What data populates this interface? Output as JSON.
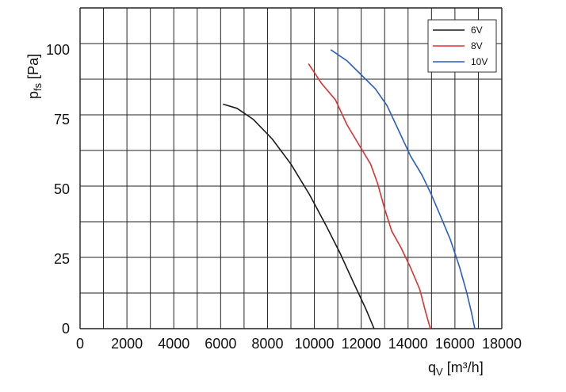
{
  "chart_data": {
    "type": "line",
    "xlabel_main": "q",
    "xlabel_sub": "V",
    "xlabel_unit": " [m³/h]",
    "ylabel_main": "p",
    "ylabel_sub": "fs",
    "ylabel_unit": " [Pa]",
    "xlim": [
      0,
      18000
    ],
    "ylim": [
      0,
      115
    ],
    "x_ticks": [
      0,
      2000,
      4000,
      6000,
      8000,
      10000,
      12000,
      14000,
      16000,
      18000
    ],
    "y_ticks": [
      0,
      25,
      50,
      75,
      100
    ],
    "grid": true,
    "legend": "top-right",
    "series": [
      {
        "name": "6V",
        "color": "#1a1a1a",
        "points": [
          [
            6100,
            80.5
          ],
          [
            6700,
            79
          ],
          [
            7400,
            75
          ],
          [
            8200,
            68
          ],
          [
            9000,
            59
          ],
          [
            9800,
            48
          ],
          [
            10500,
            37
          ],
          [
            11100,
            27
          ],
          [
            11700,
            16
          ],
          [
            12200,
            7
          ],
          [
            12550,
            0
          ]
        ]
      },
      {
        "name": "8V",
        "color": "#e03030",
        "points": [
          [
            9750,
            95
          ],
          [
            10300,
            88
          ],
          [
            10900,
            82
          ],
          [
            11400,
            73
          ],
          [
            11900,
            66
          ],
          [
            12400,
            59
          ],
          [
            12700,
            52
          ],
          [
            13000,
            43
          ],
          [
            13300,
            35
          ],
          [
            13700,
            29
          ],
          [
            14100,
            22
          ],
          [
            14500,
            14
          ],
          [
            14750,
            6
          ],
          [
            14950,
            0
          ]
        ]
      },
      {
        "name": "10V",
        "color": "#2a5cc8",
        "points": [
          [
            10700,
            100
          ],
          [
            11400,
            96
          ],
          [
            12000,
            91
          ],
          [
            12600,
            86
          ],
          [
            13100,
            80
          ],
          [
            13600,
            71
          ],
          [
            14100,
            62
          ],
          [
            14600,
            55
          ],
          [
            15000,
            48
          ],
          [
            15400,
            40
          ],
          [
            15800,
            32
          ],
          [
            16200,
            22
          ],
          [
            16500,
            13
          ],
          [
            16700,
            6
          ],
          [
            16850,
            0
          ]
        ]
      }
    ]
  }
}
